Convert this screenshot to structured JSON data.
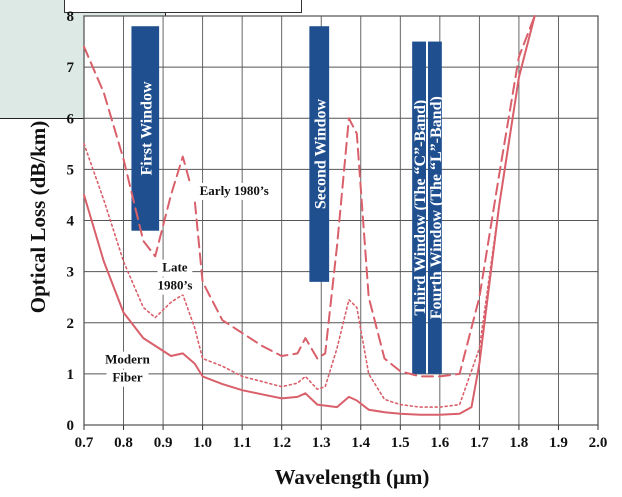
{
  "chart_data": {
    "type": "line",
    "xlabel": "Wavelength (μm)",
    "ylabel": "Optical Loss (dB/km)",
    "xlim": [
      0.7,
      2.0
    ],
    "ylim": [
      0,
      8
    ],
    "x_ticks": [
      "0.7",
      "0.8",
      "0.9",
      "1.0",
      "1.1",
      "1.2",
      "1.3",
      "1.4",
      "1.5",
      "1.6",
      "1.7",
      "1.8",
      "1.9",
      "2.0"
    ],
    "y_ticks": [
      "0",
      "1",
      "2",
      "3",
      "4",
      "5",
      "6",
      "7",
      "8"
    ],
    "grid": true,
    "colors": {
      "curve": "#d9606a",
      "band": "#1f4f8f"
    },
    "windows": [
      {
        "label": "First Window",
        "x0": 0.82,
        "x1": 0.89,
        "y0": 3.8,
        "y1": 7.8
      },
      {
        "label": "Second Window",
        "x0": 1.27,
        "x1": 1.32,
        "y0": 2.8,
        "y1": 7.8
      },
      {
        "label": "Third Window (The “C”-Band)",
        "x0": 1.53,
        "x1": 1.565,
        "y0": 1.0,
        "y1": 7.5
      },
      {
        "label": "Fourth Window (The “L”-Band)",
        "x0": 1.57,
        "x1": 1.605,
        "y0": 1.0,
        "y1": 7.5
      }
    ],
    "series": [
      {
        "name": "Early 1980’s",
        "style": "dashed",
        "points": [
          [
            0.7,
            7.4
          ],
          [
            0.75,
            6.5
          ],
          [
            0.8,
            5.2
          ],
          [
            0.85,
            3.6
          ],
          [
            0.88,
            3.3
          ],
          [
            0.92,
            4.5
          ],
          [
            0.95,
            5.25
          ],
          [
            0.98,
            4.4
          ],
          [
            1.0,
            2.8
          ],
          [
            1.05,
            2.05
          ],
          [
            1.1,
            1.8
          ],
          [
            1.15,
            1.55
          ],
          [
            1.2,
            1.35
          ],
          [
            1.24,
            1.4
          ],
          [
            1.26,
            1.7
          ],
          [
            1.29,
            1.3
          ],
          [
            1.31,
            1.4
          ],
          [
            1.34,
            3.5
          ],
          [
            1.37,
            6.0
          ],
          [
            1.39,
            5.7
          ],
          [
            1.42,
            2.5
          ],
          [
            1.46,
            1.3
          ],
          [
            1.5,
            1.05
          ],
          [
            1.55,
            0.95
          ],
          [
            1.6,
            0.95
          ],
          [
            1.65,
            1.0
          ],
          [
            1.7,
            2.5
          ],
          [
            1.75,
            4.9
          ],
          [
            1.8,
            7.2
          ],
          [
            1.84,
            8.0
          ]
        ]
      },
      {
        "name": "Late 1980’s",
        "style": "dotted",
        "points": [
          [
            0.7,
            5.5
          ],
          [
            0.75,
            4.4
          ],
          [
            0.8,
            3.2
          ],
          [
            0.85,
            2.3
          ],
          [
            0.88,
            2.1
          ],
          [
            0.92,
            2.4
          ],
          [
            0.95,
            2.55
          ],
          [
            0.98,
            1.9
          ],
          [
            1.0,
            1.3
          ],
          [
            1.05,
            1.15
          ],
          [
            1.1,
            0.95
          ],
          [
            1.15,
            0.85
          ],
          [
            1.2,
            0.75
          ],
          [
            1.24,
            0.82
          ],
          [
            1.26,
            0.95
          ],
          [
            1.29,
            0.7
          ],
          [
            1.31,
            0.75
          ],
          [
            1.34,
            1.5
          ],
          [
            1.37,
            2.45
          ],
          [
            1.39,
            2.3
          ],
          [
            1.42,
            1.0
          ],
          [
            1.46,
            0.5
          ],
          [
            1.5,
            0.4
          ],
          [
            1.55,
            0.35
          ],
          [
            1.6,
            0.35
          ],
          [
            1.65,
            0.4
          ],
          [
            1.7,
            1.5
          ],
          [
            1.75,
            4.3
          ],
          [
            1.8,
            6.8
          ],
          [
            1.84,
            8.0
          ]
        ]
      },
      {
        "name": "Modern Fiber",
        "style": "solid",
        "points": [
          [
            0.7,
            4.5
          ],
          [
            0.75,
            3.2
          ],
          [
            0.8,
            2.2
          ],
          [
            0.85,
            1.7
          ],
          [
            0.9,
            1.45
          ],
          [
            0.92,
            1.35
          ],
          [
            0.95,
            1.4
          ],
          [
            0.98,
            1.2
          ],
          [
            1.0,
            0.95
          ],
          [
            1.05,
            0.8
          ],
          [
            1.1,
            0.68
          ],
          [
            1.15,
            0.6
          ],
          [
            1.2,
            0.52
          ],
          [
            1.24,
            0.55
          ],
          [
            1.26,
            0.62
          ],
          [
            1.29,
            0.4
          ],
          [
            1.31,
            0.38
          ],
          [
            1.34,
            0.35
          ],
          [
            1.37,
            0.55
          ],
          [
            1.39,
            0.48
          ],
          [
            1.42,
            0.3
          ],
          [
            1.46,
            0.25
          ],
          [
            1.5,
            0.22
          ],
          [
            1.55,
            0.2
          ],
          [
            1.6,
            0.2
          ],
          [
            1.65,
            0.22
          ],
          [
            1.68,
            0.35
          ],
          [
            1.7,
            1.2
          ],
          [
            1.75,
            4.3
          ],
          [
            1.8,
            6.8
          ],
          [
            1.84,
            8.0
          ]
        ]
      }
    ],
    "annotations": [
      {
        "id": "early",
        "lines": [
          "Early 1980’s"
        ],
        "x": 1.08,
        "y": 4.5
      },
      {
        "id": "late",
        "lines": [
          "Late",
          "1980’s"
        ],
        "x": 0.93,
        "y": 3.0
      },
      {
        "id": "modern",
        "lines": [
          "Modern",
          "Fiber"
        ],
        "x": 0.81,
        "y": 1.2
      }
    ]
  }
}
